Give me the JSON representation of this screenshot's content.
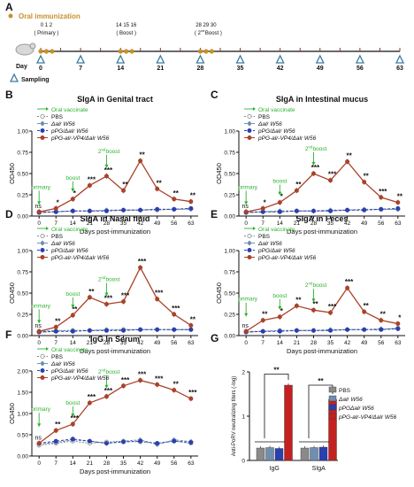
{
  "colors": {
    "pbs": "#8a8a8a",
    "dalr": "#6f8fb0",
    "pPG": "#2a3fb0",
    "vp4": "#a9432a",
    "annot": "#2db22d",
    "sig": "#111111",
    "orange": "#c8902a",
    "timeline": "#6a6a6a",
    "sampling": "#3a7aa0",
    "red_bar": "#c32020"
  },
  "panel_a": {
    "label": "A",
    "legend_oral": "Oral immunization",
    "legend_sampling": "Sampling",
    "day_label": "Day",
    "days": [
      "0",
      "7",
      "14",
      "21",
      "28",
      "35",
      "42",
      "49",
      "56",
      "63"
    ],
    "primary": "Primary",
    "primary_days": "0 1 2",
    "boost": "Boost",
    "boost_days": "14 15 16",
    "boost2": "Boost",
    "boost2_days": "28 29 30",
    "boost2_sup": "nd",
    "boost2_num": "2"
  },
  "chart_data": [
    {
      "type": "line",
      "panel": "B",
      "title": "SIgA in Genital tract",
      "xlabel": "Days post-immunization",
      "ylabel": "OD450",
      "ylim": [
        0,
        1.0
      ],
      "yticks": [
        "0.00",
        "0.25",
        "0.50",
        "0.75",
        "1.00"
      ],
      "x": [
        0,
        7,
        14,
        21,
        28,
        35,
        42,
        49,
        56,
        63
      ],
      "legend": [
        "Oral vaccinate",
        "PBS",
        "Δalr W56",
        "pPG/Δalr W56",
        "pPG-alr-VP4/Δalr W56"
      ],
      "series": [
        {
          "name": "PBS",
          "values": [
            0.04,
            0.05,
            0.06,
            0.06,
            0.06,
            0.07,
            0.07,
            0.07,
            0.08,
            0.09
          ]
        },
        {
          "name": "Δalr W56",
          "values": [
            0.05,
            0.05,
            0.06,
            0.06,
            0.07,
            0.07,
            0.07,
            0.08,
            0.08,
            0.08
          ]
        },
        {
          "name": "pPG/Δalr W56",
          "values": [
            0.04,
            0.05,
            0.06,
            0.06,
            0.06,
            0.07,
            0.07,
            0.08,
            0.08,
            0.09
          ]
        },
        {
          "name": "pPG-alr-VP4/Δalr W56",
          "values": [
            0.05,
            0.09,
            0.2,
            0.36,
            0.47,
            0.3,
            0.65,
            0.32,
            0.2,
            0.17
          ]
        }
      ],
      "sig": [
        "ns",
        "*",
        "*",
        "***",
        "***",
        "**",
        "**",
        "**",
        "**",
        "**"
      ],
      "annotations": {
        "primary": "primary",
        "boost": "boost",
        "boost2": "boost",
        "boost2_sup": "nd",
        "boost2_num": "2"
      }
    },
    {
      "type": "line",
      "panel": "C",
      "title": "SIgA in Intestinal mucus",
      "xlabel": "Days post-immunization",
      "ylabel": "OD450",
      "ylim": [
        0,
        1.0
      ],
      "yticks": [
        "0.00",
        "0.25",
        "0.50",
        "0.75",
        "1.00"
      ],
      "x": [
        0,
        7,
        14,
        21,
        28,
        35,
        42,
        49,
        56,
        63
      ],
      "legend": [
        "Oral vaccinate",
        "PBS",
        "Δalr W56",
        "pPG/Δalr W56",
        "pPG-alr-VP4/Δalr W56"
      ],
      "series": [
        {
          "name": "PBS",
          "values": [
            0.04,
            0.05,
            0.05,
            0.06,
            0.06,
            0.06,
            0.07,
            0.07,
            0.08,
            0.08
          ]
        },
        {
          "name": "Δalr W56",
          "values": [
            0.05,
            0.05,
            0.06,
            0.06,
            0.06,
            0.07,
            0.07,
            0.08,
            0.08,
            0.08
          ]
        },
        {
          "name": "pPG/Δalr W56",
          "values": [
            0.04,
            0.05,
            0.05,
            0.06,
            0.06,
            0.06,
            0.07,
            0.07,
            0.08,
            0.09
          ]
        },
        {
          "name": "pPG-alr-VP4/Δalr W56",
          "values": [
            0.05,
            0.09,
            0.16,
            0.3,
            0.5,
            0.42,
            0.64,
            0.4,
            0.22,
            0.16
          ]
        }
      ],
      "sig": [
        "ns",
        "*",
        "*",
        "**",
        "***",
        "***",
        "**",
        "**",
        "***",
        "**"
      ],
      "annotations": {
        "primary": "primary",
        "boost": "boost",
        "boost2": "boost",
        "boost2_sup": "nd",
        "boost2_num": "2"
      }
    },
    {
      "type": "line",
      "panel": "D",
      "title": "SIgA in Nasal fluid",
      "xlabel": "Days post-immunization",
      "ylabel": "OD450",
      "ylim": [
        0,
        1.0
      ],
      "yticks": [
        "0.00",
        "0.25",
        "0.50",
        "0.75",
        "1.00"
      ],
      "x": [
        0,
        7,
        14,
        21,
        28,
        35,
        42,
        49,
        56,
        63
      ],
      "legend": [
        "Oral vaccinate",
        "PBS",
        "Δalr W56",
        "pPG/Δalr W56",
        "pPG-alr-VP4/Δalr W56"
      ],
      "series": [
        {
          "name": "PBS",
          "values": [
            0.04,
            0.05,
            0.06,
            0.06,
            0.06,
            0.07,
            0.07,
            0.07,
            0.07,
            0.07
          ]
        },
        {
          "name": "Δalr W56",
          "values": [
            0.05,
            0.06,
            0.06,
            0.06,
            0.07,
            0.07,
            0.07,
            0.07,
            0.07,
            0.07
          ]
        },
        {
          "name": "pPG/Δalr W56",
          "values": [
            0.04,
            0.05,
            0.05,
            0.06,
            0.06,
            0.06,
            0.07,
            0.07,
            0.07,
            0.07
          ]
        },
        {
          "name": "pPG-alr-VP4/Δalr W56",
          "values": [
            0.05,
            0.1,
            0.24,
            0.45,
            0.37,
            0.4,
            0.8,
            0.43,
            0.25,
            0.12
          ]
        }
      ],
      "sig": [
        "ns",
        "**",
        "**",
        "**",
        "***",
        "***",
        "***",
        "***",
        "***",
        "**"
      ],
      "annotations": {
        "primary": "primary",
        "boost": "boost",
        "boost2": "boost",
        "boost2_sup": "nd",
        "boost2_num": "2"
      }
    },
    {
      "type": "line",
      "panel": "E",
      "title": "SIgA in Feces",
      "xlabel": "Days post-immunization",
      "ylabel": "OD450",
      "ylim": [
        0,
        1.0
      ],
      "yticks": [
        "0.00",
        "0.25",
        "0.50",
        "0.75",
        "1.00"
      ],
      "x": [
        0,
        7,
        14,
        21,
        28,
        35,
        42,
        49,
        56,
        63
      ],
      "legend": [
        "Oral vaccinate",
        "PBS",
        "Δalr W56",
        "pPG/Δalr W56",
        "pPG-alr-VP4/Δalr W56"
      ],
      "series": [
        {
          "name": "PBS",
          "values": [
            0.04,
            0.05,
            0.06,
            0.06,
            0.06,
            0.06,
            0.07,
            0.07,
            0.07,
            0.09
          ]
        },
        {
          "name": "Δalr W56",
          "values": [
            0.05,
            0.05,
            0.06,
            0.06,
            0.06,
            0.07,
            0.07,
            0.07,
            0.08,
            0.08
          ]
        },
        {
          "name": "pPG/Δalr W56",
          "values": [
            0.04,
            0.05,
            0.05,
            0.06,
            0.06,
            0.06,
            0.07,
            0.07,
            0.07,
            0.08
          ]
        },
        {
          "name": "pPG-alr-VP4/Δalr W56",
          "values": [
            0.05,
            0.18,
            0.22,
            0.35,
            0.3,
            0.27,
            0.56,
            0.28,
            0.18,
            0.14
          ]
        }
      ],
      "sig": [
        "ns",
        "**",
        "*",
        "**",
        "**",
        "***",
        "***",
        "**",
        "**",
        "*"
      ],
      "annotations": {
        "primary": "primary",
        "boost": "boost",
        "boost2": "boost",
        "boost2_sup": "nd",
        "boost2_num": "2"
      }
    },
    {
      "type": "line",
      "panel": "F",
      "title": "IgG in Serum",
      "xlabel": "Days post-immunization",
      "ylabel": "OD450",
      "ylim": [
        0,
        2.0
      ],
      "yticks": [
        "0.00",
        "0.50",
        "1.00",
        "1.50",
        "2.00"
      ],
      "x": [
        0,
        7,
        14,
        21,
        28,
        35,
        42,
        49,
        56,
        63
      ],
      "legend": [
        "Oral vaccinate",
        "PBS",
        "Δalr W56",
        "pPG/Δalr W56",
        "pPG-alr-VP4/Δalr W56"
      ],
      "series": [
        {
          "name": "PBS",
          "values": [
            0.25,
            0.3,
            0.35,
            0.3,
            0.33,
            0.35,
            0.33,
            0.3,
            0.35,
            0.3
          ]
        },
        {
          "name": "Δalr W56",
          "values": [
            0.28,
            0.32,
            0.38,
            0.35,
            0.3,
            0.35,
            0.38,
            0.27,
            0.38,
            0.34
          ]
        },
        {
          "name": "pPG/Δalr W56",
          "values": [
            0.3,
            0.35,
            0.4,
            0.35,
            0.3,
            0.33,
            0.35,
            0.3,
            0.35,
            0.32
          ]
        },
        {
          "name": "pPG-alr-VP4/Δalr W56",
          "values": [
            0.3,
            0.6,
            0.75,
            1.25,
            1.4,
            1.65,
            1.78,
            1.68,
            1.55,
            1.35
          ]
        }
      ],
      "sig": [
        "ns",
        "**",
        "***",
        "***",
        "***",
        "***",
        "***",
        "***",
        "**",
        "***"
      ],
      "annotations": {
        "primary": "primary",
        "boost": "boost",
        "boost2": "boost",
        "boost2_sup": "nd",
        "boost2_num": "2"
      }
    },
    {
      "type": "bar",
      "panel": "G",
      "ylabel": "Anti-PoRV neutralizing titers (-log)",
      "ylim": [
        0,
        2
      ],
      "yticks": [
        "0",
        "1",
        "2"
      ],
      "categories": [
        "IgG",
        "SIgA"
      ],
      "legend": [
        "PBS",
        "Δalr W56",
        "pPGΔalr W56",
        "pPG-alr-VP4/Δalr W56"
      ],
      "series": [
        {
          "name": "PBS",
          "values": [
            0.28,
            0.28
          ]
        },
        {
          "name": "Δalr W56",
          "values": [
            0.29,
            0.29
          ]
        },
        {
          "name": "pPGΔalr W56",
          "values": [
            0.27,
            0.3
          ]
        },
        {
          "name": "pPG-alr-VP4/Δalr W56",
          "values": [
            1.7,
            1.38
          ]
        }
      ],
      "sig": [
        "**",
        "**"
      ]
    }
  ]
}
